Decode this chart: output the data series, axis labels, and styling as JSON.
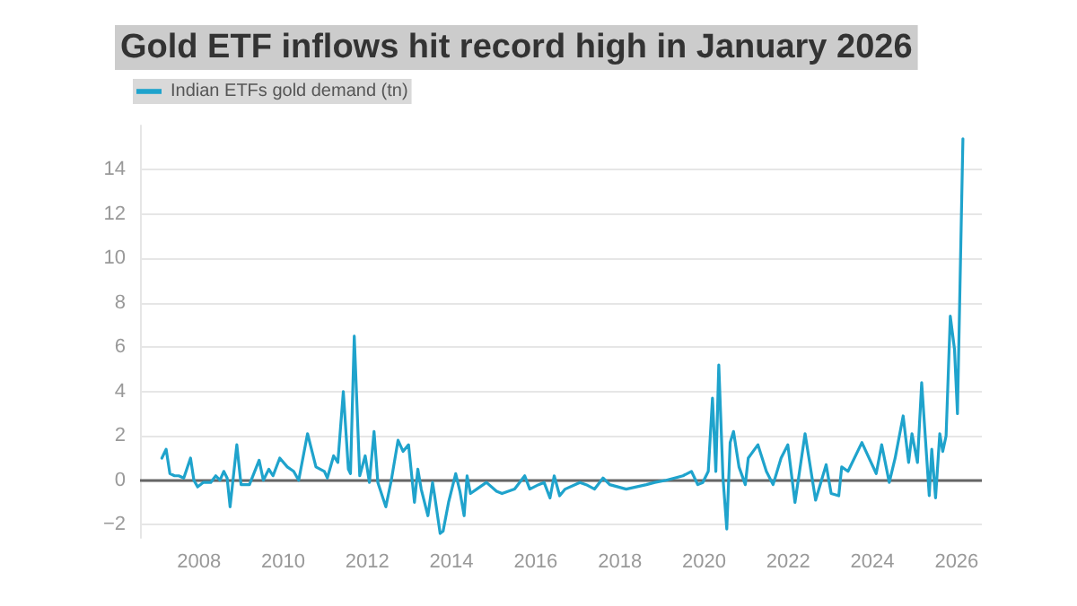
{
  "chart_data": {
    "type": "line",
    "title": "Gold ETF inflows hit record high in January 2026",
    "x": [
      2007.12,
      2007.22,
      2007.31,
      2007.42,
      2007.52,
      2007.64,
      2007.8,
      2007.88,
      2007.97,
      2008.1,
      2008.28,
      2008.4,
      2008.5,
      2008.59,
      2008.67,
      2008.74,
      2008.9,
      2009.0,
      2009.2,
      2009.43,
      2009.53,
      2009.66,
      2009.76,
      2009.92,
      2010.1,
      2010.25,
      2010.37,
      2010.58,
      2010.78,
      2010.98,
      2011.05,
      2011.2,
      2011.3,
      2011.43,
      2011.55,
      2011.6,
      2011.69,
      2011.82,
      2011.95,
      2012.05,
      2012.16,
      2012.25,
      2012.44,
      2012.57,
      2012.73,
      2012.85,
      2012.98,
      2013.12,
      2013.2,
      2013.28,
      2013.44,
      2013.55,
      2013.6,
      2013.73,
      2013.8,
      2013.93,
      2014.1,
      2014.2,
      2014.3,
      2014.37,
      2014.45,
      2014.6,
      2014.83,
      2015.07,
      2015.2,
      2015.5,
      2015.74,
      2015.86,
      2016.07,
      2016.2,
      2016.34,
      2016.44,
      2016.57,
      2016.7,
      2017.05,
      2017.2,
      2017.4,
      2017.6,
      2017.76,
      2018.15,
      2018.63,
      2018.83,
      2019.1,
      2019.5,
      2019.7,
      2019.85,
      2019.97,
      2020.1,
      2020.2,
      2020.28,
      2020.35,
      2020.45,
      2020.54,
      2020.62,
      2020.7,
      2020.83,
      2020.98,
      2021.05,
      2021.28,
      2021.48,
      2021.64,
      2021.83,
      2021.99,
      2022.16,
      2022.4,
      2022.65,
      2022.9,
      2023.02,
      2023.2,
      2023.27,
      2023.42,
      2023.75,
      2024.09,
      2024.22,
      2024.4,
      2024.54,
      2024.73,
      2024.86,
      2024.94,
      2025.07,
      2025.17,
      2025.35,
      2025.41,
      2025.5,
      2025.6,
      2025.67,
      2025.75,
      2025.85,
      2025.95,
      2026.02,
      2026.15
    ],
    "series": [
      {
        "name": "Indian ETFs gold demand (tn)",
        "color": "#1fa3cc",
        "values": [
          1.0,
          1.4,
          0.3,
          0.2,
          0.2,
          0.1,
          1.0,
          0,
          -0.3,
          -0.1,
          -0.1,
          0.2,
          0,
          0.4,
          0.1,
          -1.2,
          1.6,
          -0.2,
          -0.2,
          0.9,
          0,
          0.5,
          0.2,
          1.0,
          0.6,
          0.4,
          0,
          2.1,
          0.6,
          0.4,
          0.1,
          1.1,
          0.8,
          4.0,
          0.5,
          0.3,
          6.5,
          0.2,
          1.1,
          -0.1,
          2.2,
          -0.1,
          -1.2,
          0,
          1.8,
          1.3,
          1.6,
          -1.0,
          0.5,
          -0.4,
          -1.6,
          -0.1,
          -0.7,
          -2.4,
          -2.3,
          -1.0,
          0.3,
          -0.5,
          -1.6,
          0.2,
          -0.6,
          -0.4,
          -0.1,
          -0.5,
          -0.6,
          -0.4,
          0.2,
          -0.4,
          -0.2,
          -0.1,
          -0.8,
          0.2,
          -0.7,
          -0.4,
          -0.1,
          -0.2,
          -0.4,
          0.1,
          -0.2,
          -0.4,
          -0.2,
          -0.1,
          0,
          0.2,
          0.4,
          -0.2,
          -0.1,
          0.4,
          3.7,
          0.4,
          5.2,
          0.1,
          -2.2,
          1.7,
          2.2,
          0.6,
          -0.2,
          1.0,
          1.6,
          0.4,
          -0.2,
          1.0,
          1.6,
          -1.0,
          2.1,
          -0.9,
          0.7,
          -0.6,
          -0.7,
          0.6,
          0.4,
          1.7,
          0.3,
          1.6,
          -0.1,
          1.0,
          2.9,
          0.8,
          2.1,
          0.8,
          4.4,
          -0.7,
          1.4,
          -0.8,
          2.1,
          1.3,
          2.0,
          7.4,
          5.9,
          3.0,
          15.4
        ]
      }
    ],
    "xlim": [
      2006.6,
      2026.6
    ],
    "xticks": [
      2008,
      2010,
      2012,
      2014,
      2016,
      2018,
      2020,
      2022,
      2024,
      2026
    ],
    "ylim": [
      -2.6,
      16
    ],
    "yticks": [
      {
        "value": -2,
        "label": "−2"
      },
      0,
      2,
      4,
      6,
      8,
      10,
      12,
      14
    ],
    "ref_lines": [
      {
        "axis": "y",
        "value": 0,
        "color": "#666666"
      }
    ],
    "grid": "y",
    "legend": "top left",
    "marker": "none",
    "line_style": "solid"
  }
}
